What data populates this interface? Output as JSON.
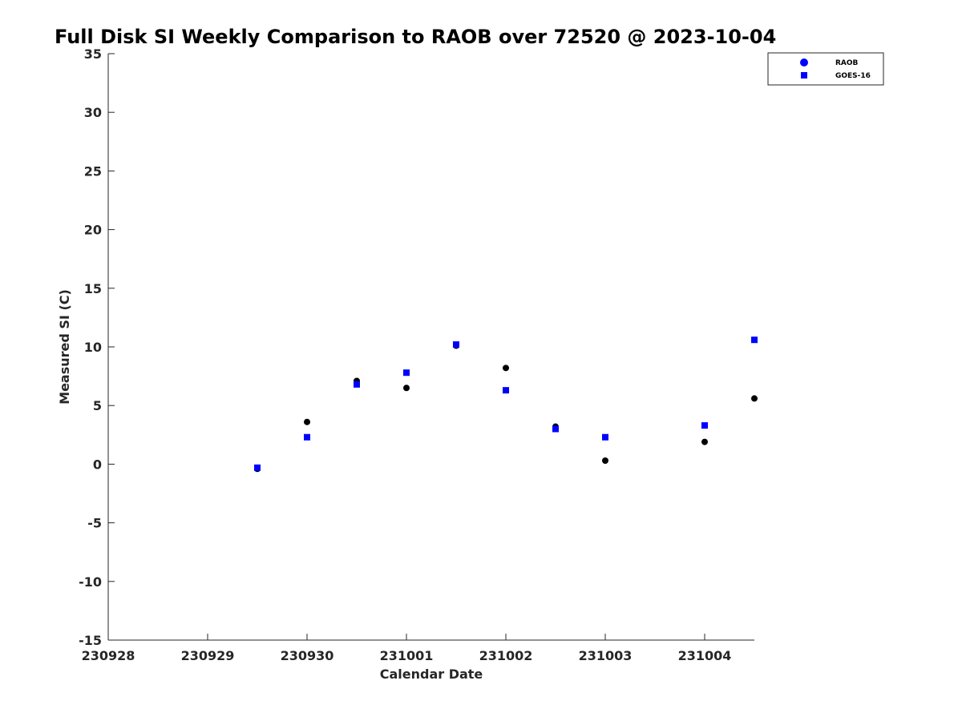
{
  "chart_data": {
    "type": "scatter",
    "title": "Full Disk SI Weekly Comparison to RAOB over 72520 @ 2023-10-04",
    "xlabel": "Calendar Date",
    "ylabel": "Measured SI (C)",
    "xlim": [
      0,
      6.5
    ],
    "ylim": [
      -15,
      35
    ],
    "x_ticks": [
      0,
      1,
      2,
      3,
      4,
      5,
      6
    ],
    "x_tick_labels": [
      "230928",
      "230929",
      "230930",
      "231001",
      "231002",
      "231003",
      "231004"
    ],
    "y_ticks": [
      -15,
      -10,
      -5,
      0,
      5,
      10,
      15,
      20,
      25,
      30,
      35
    ],
    "y_tick_labels": [
      "-15",
      "-10",
      "-5",
      "0",
      "5",
      "10",
      "15",
      "20",
      "25",
      "30",
      "35"
    ],
    "grid": false,
    "legend_position": "top-right",
    "series": [
      {
        "name": "RAOB",
        "marker": "circle",
        "color": "#000000",
        "legend_color": "#0000ff",
        "x": [
          1.5,
          2.0,
          2.5,
          3.0,
          3.5,
          4.0,
          4.5,
          5.0,
          6.0,
          6.5
        ],
        "y": [
          -0.4,
          3.6,
          7.1,
          6.5,
          10.1,
          8.2,
          3.2,
          0.3,
          1.9,
          5.6
        ]
      },
      {
        "name": "GOES-16",
        "marker": "square",
        "color": "#0000ff",
        "legend_color": "#0000ff",
        "x": [
          1.5,
          2.0,
          2.5,
          3.0,
          3.5,
          4.0,
          4.5,
          5.0,
          6.0,
          6.5
        ],
        "y": [
          -0.3,
          2.3,
          6.8,
          7.8,
          10.2,
          6.3,
          3.0,
          2.3,
          3.3,
          10.6
        ]
      }
    ]
  }
}
